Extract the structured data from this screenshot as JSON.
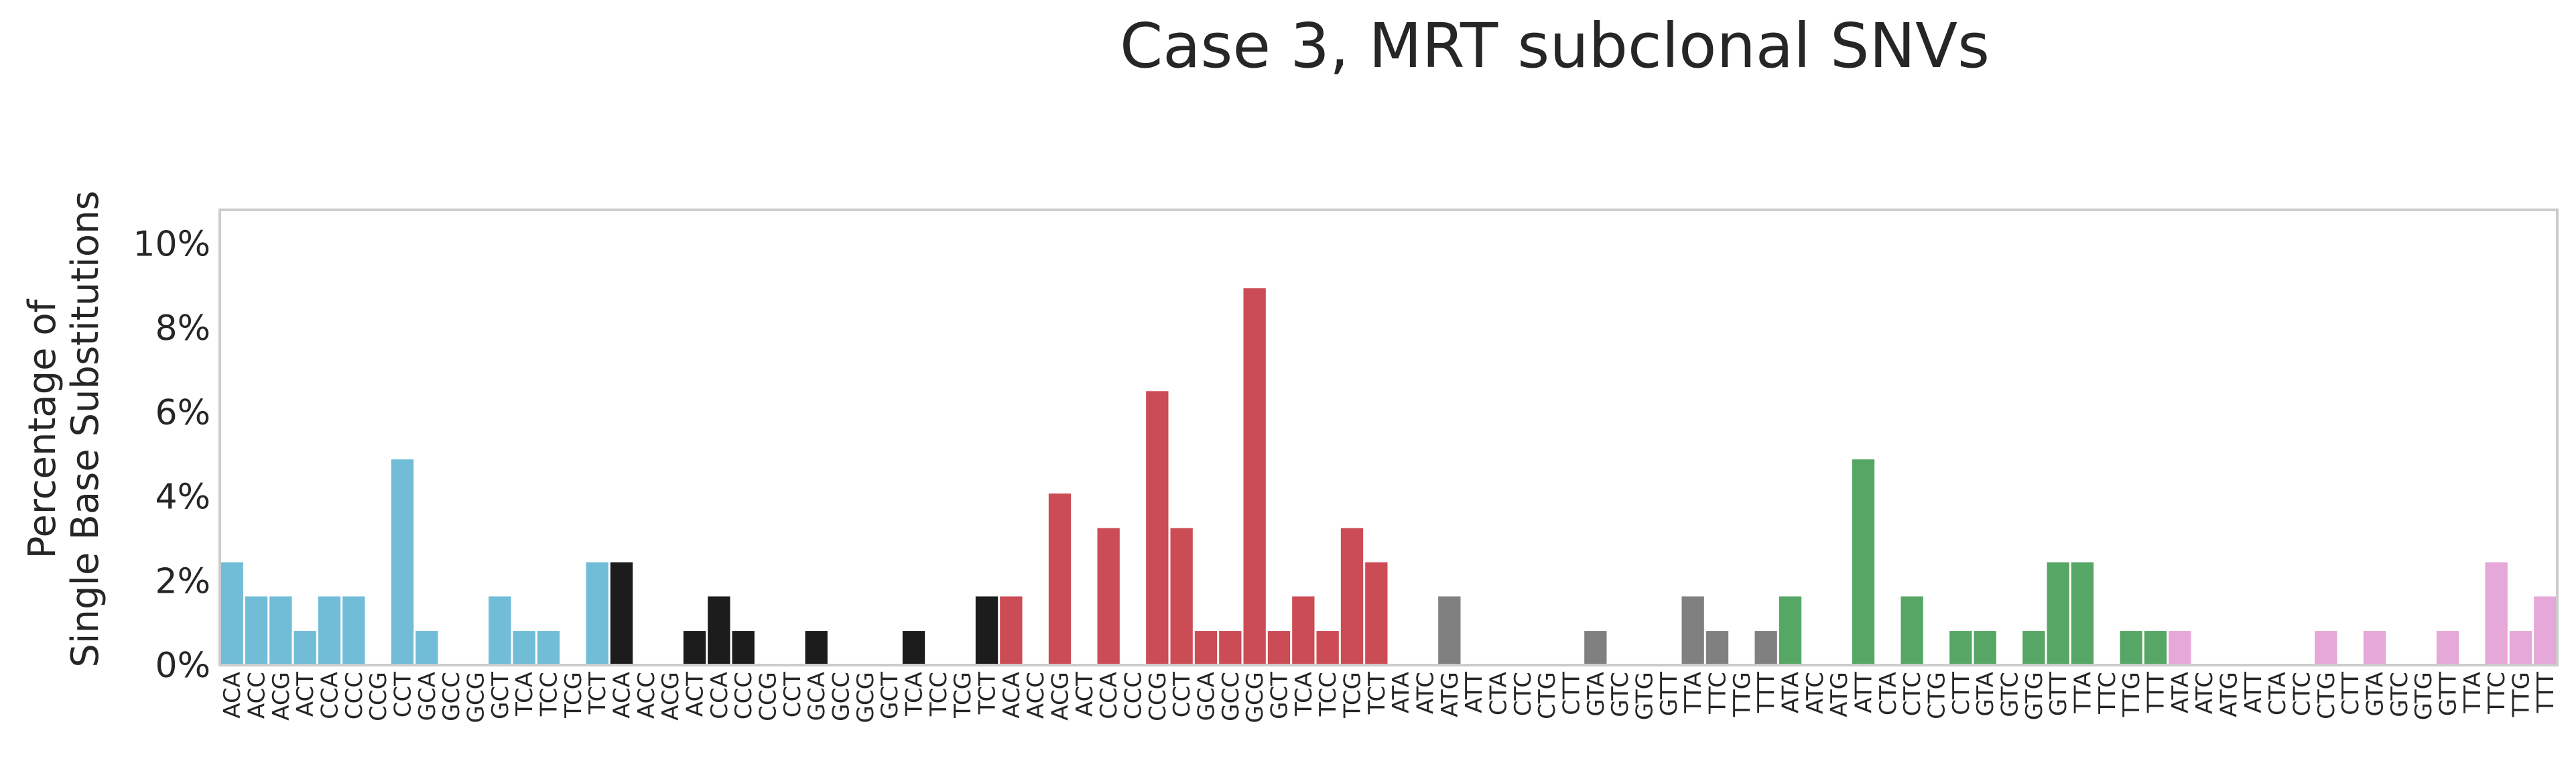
{
  "chart_data": {
    "type": "bar",
    "title": "Case 3, MRT subclonal SNVs",
    "ylabel_line1": "Percentage of",
    "ylabel_line2": "Single Base Substitutions",
    "ylim": [
      0,
      10.8
    ],
    "yticks": [
      0,
      2,
      4,
      6,
      8,
      10
    ],
    "ytick_labels": [
      "0%",
      "2%",
      "4%",
      "6%",
      "8%",
      "10%"
    ],
    "grid": false,
    "categories": [
      "ACA",
      "ACC",
      "ACG",
      "ACT",
      "CCA",
      "CCC",
      "CCG",
      "CCT",
      "GCA",
      "GCC",
      "GCG",
      "GCT",
      "TCA",
      "TCC",
      "TCG",
      "TCT",
      "ACA",
      "ACC",
      "ACG",
      "ACT",
      "CCA",
      "CCC",
      "CCG",
      "CCT",
      "GCA",
      "GCC",
      "GCG",
      "GCT",
      "TCA",
      "TCC",
      "TCG",
      "TCT",
      "ACA",
      "ACC",
      "ACG",
      "ACT",
      "CCA",
      "CCC",
      "CCG",
      "CCT",
      "GCA",
      "GCC",
      "GCG",
      "GCT",
      "TCA",
      "TCC",
      "TCG",
      "TCT",
      "ATA",
      "ATC",
      "ATG",
      "ATT",
      "CTA",
      "CTC",
      "CTG",
      "CTT",
      "GTA",
      "GTC",
      "GTG",
      "GTT",
      "TTA",
      "TTC",
      "TTG",
      "TTT",
      "ATA",
      "ATC",
      "ATG",
      "ATT",
      "CTA",
      "CTC",
      "CTG",
      "CTT",
      "GTA",
      "GTC",
      "GTG",
      "GTT",
      "TTA",
      "TTC",
      "TTG",
      "TTT",
      "ATA",
      "ATC",
      "ATG",
      "ATT",
      "CTA",
      "CTC",
      "CTG",
      "CTT",
      "GTA",
      "GTC",
      "GTG",
      "GTT",
      "TTA",
      "TTC",
      "TTG",
      "TTT"
    ],
    "values": [
      2.44,
      1.63,
      1.63,
      0.81,
      1.63,
      1.63,
      0,
      4.88,
      0.81,
      0,
      0,
      1.63,
      0.81,
      0.81,
      0,
      2.44,
      2.44,
      0,
      0,
      0.81,
      1.63,
      0.81,
      0,
      0,
      0.81,
      0,
      0,
      0,
      0.81,
      0,
      0,
      1.63,
      1.63,
      0,
      4.07,
      0,
      3.25,
      0,
      6.5,
      3.25,
      0.81,
      0.81,
      8.94,
      0.81,
      1.63,
      0.81,
      3.25,
      2.44,
      0,
      0,
      1.63,
      0,
      0,
      0,
      0,
      0,
      0.81,
      0,
      0,
      0,
      1.63,
      0.81,
      0,
      0.81,
      1.63,
      0,
      0,
      4.88,
      0,
      1.63,
      0,
      0.81,
      0.81,
      0,
      0.81,
      2.44,
      2.44,
      0,
      0.81,
      0.81,
      0.81,
      0,
      0,
      0,
      0,
      0,
      0.81,
      0,
      0.81,
      0,
      0,
      0.81,
      0,
      2.44,
      0.81,
      1.63
    ],
    "group_colors": [
      "#71bcd6",
      "#1c1c1c",
      "#cc4c55",
      "#808080",
      "#56a665",
      "#e5a8d8"
    ],
    "axis_color": "#cccccc"
  }
}
